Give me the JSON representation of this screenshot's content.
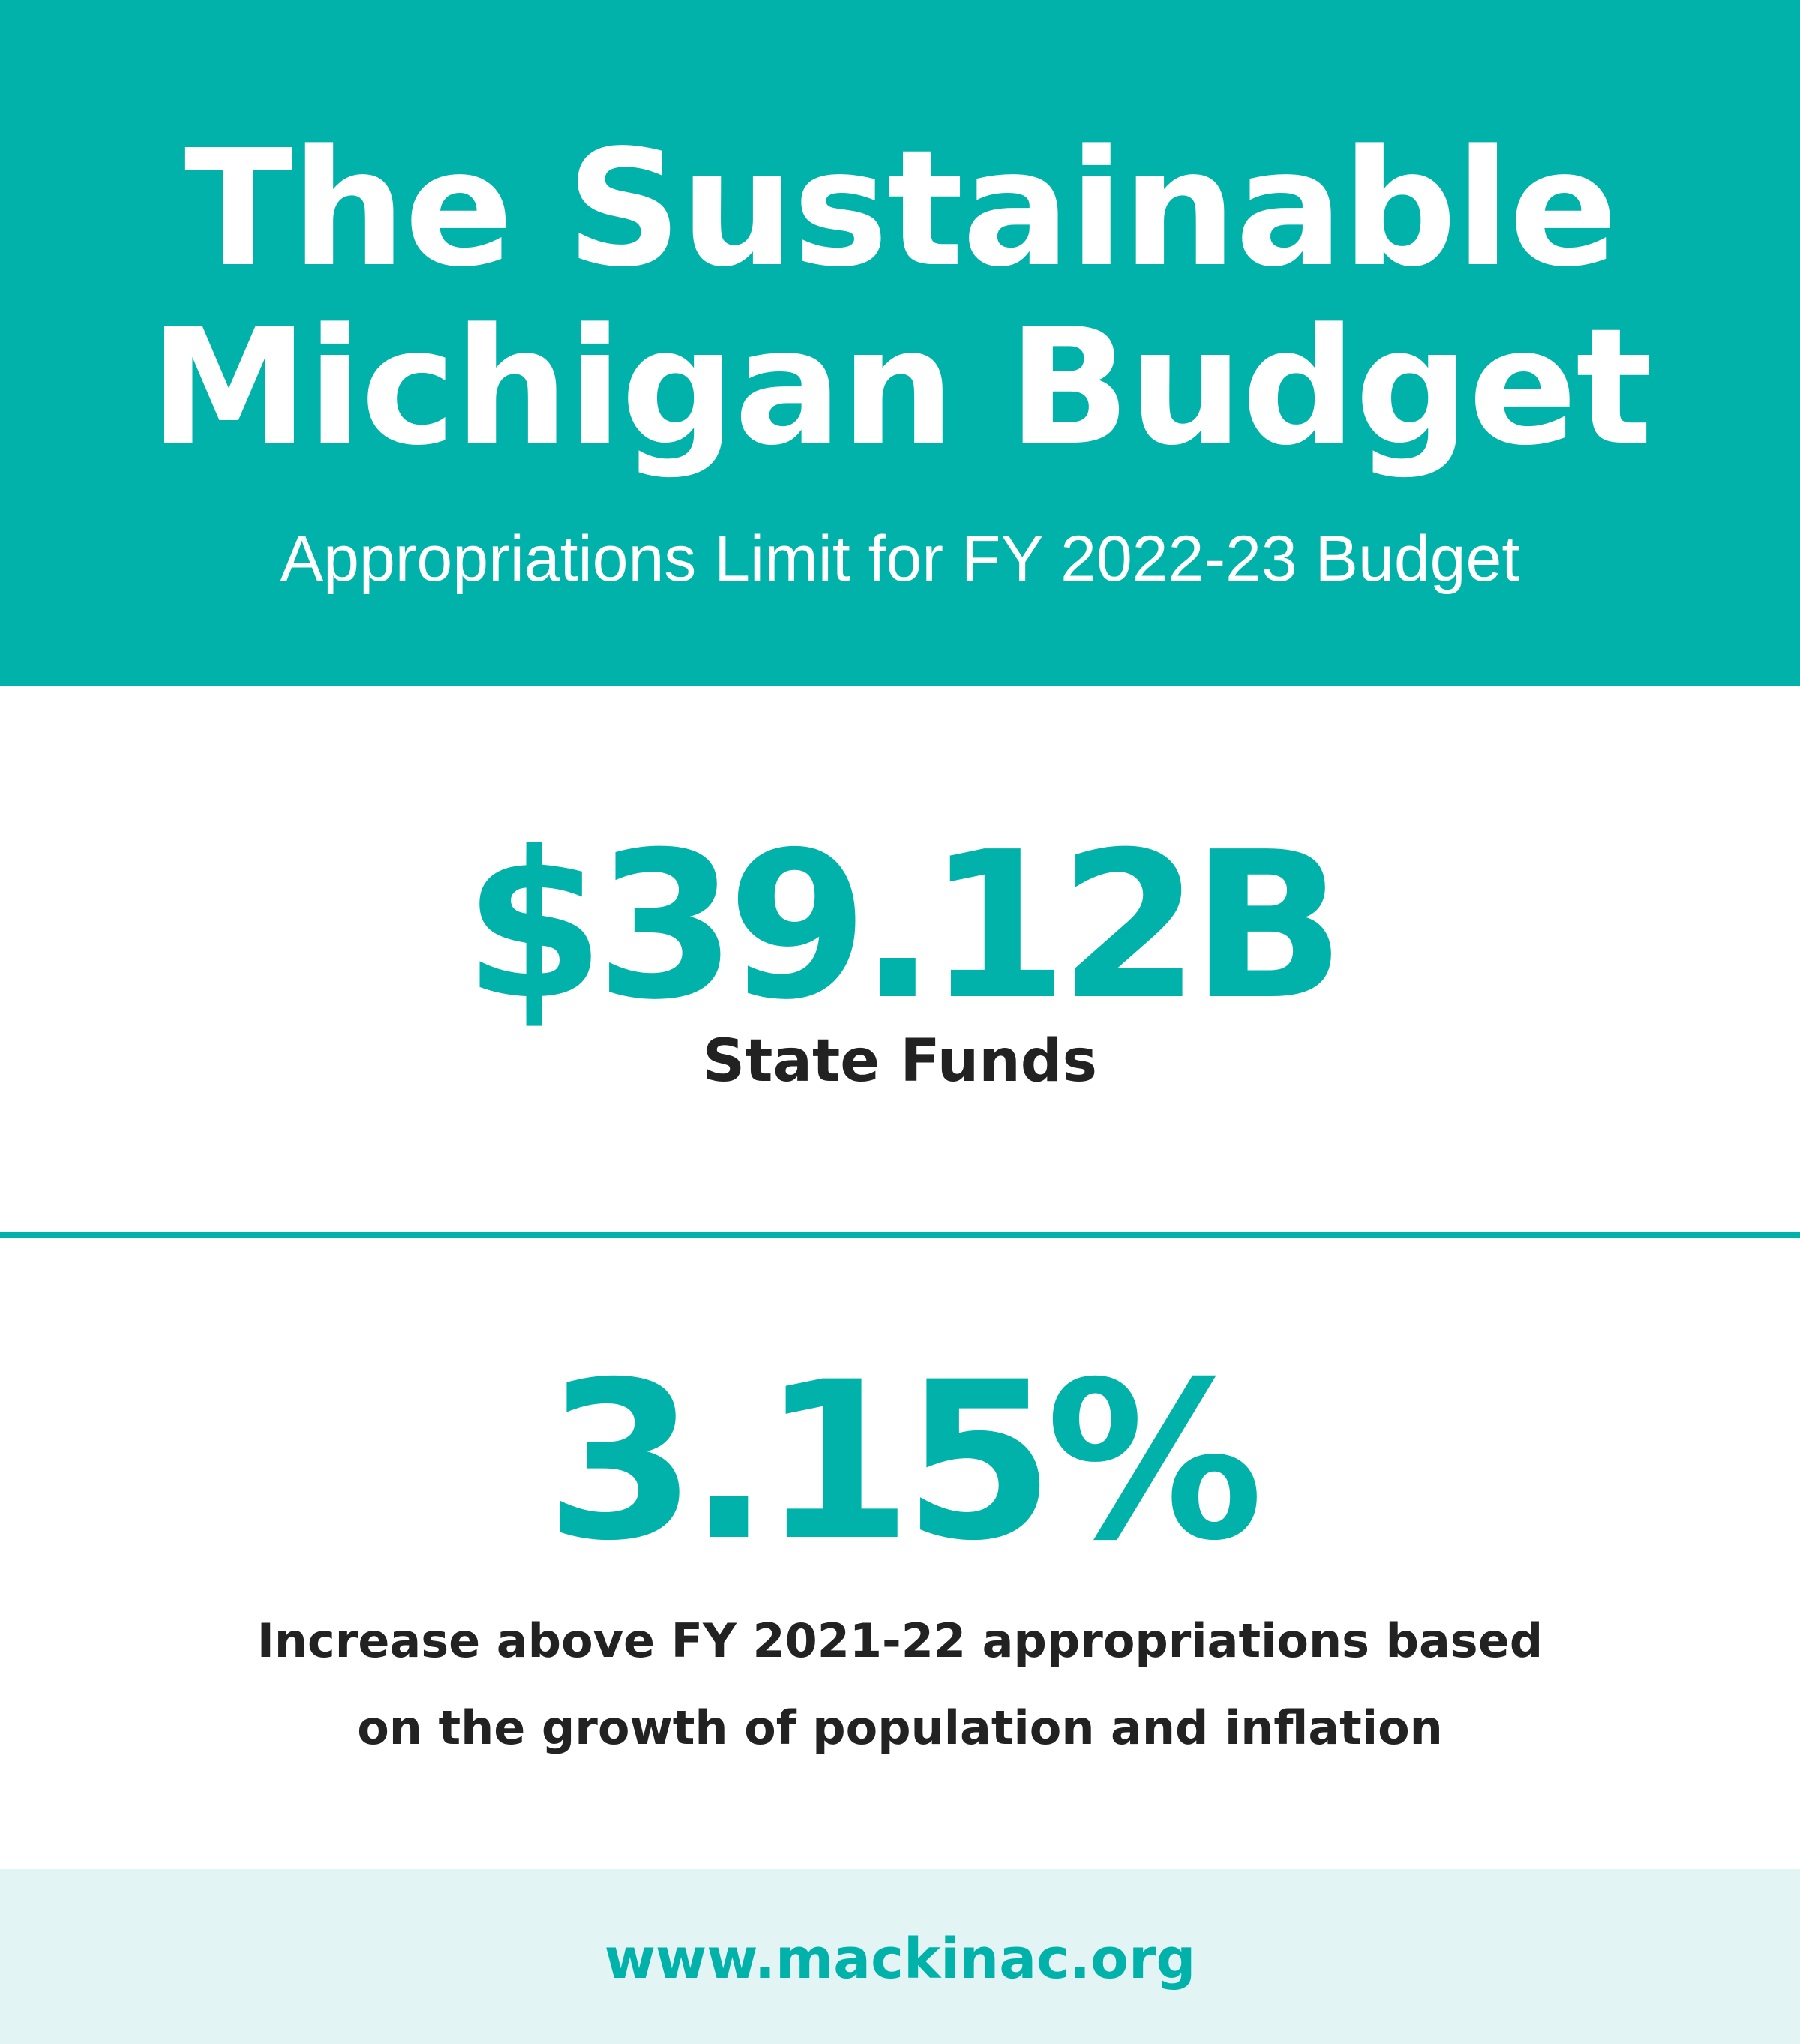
{
  "header": {
    "title_line1": "The Sustainable",
    "title_line2": "Michigan Budget",
    "subtitle": "Appropriations Limit for FY 2022-23 Budget"
  },
  "stat_1": {
    "value": "$39.12B",
    "label": "State Funds"
  },
  "stat_2": {
    "value": "3.15%",
    "description_line1": "Increase above FY 2021-22 appropriations based",
    "description_line2": "on the growth of population and inflation"
  },
  "footer": {
    "link": "www.mackinac.org"
  },
  "colors": {
    "accent": "#00b2a9",
    "footer_bg": "#e3f4f4",
    "text_dark": "#222222",
    "background": "#ffffff"
  }
}
